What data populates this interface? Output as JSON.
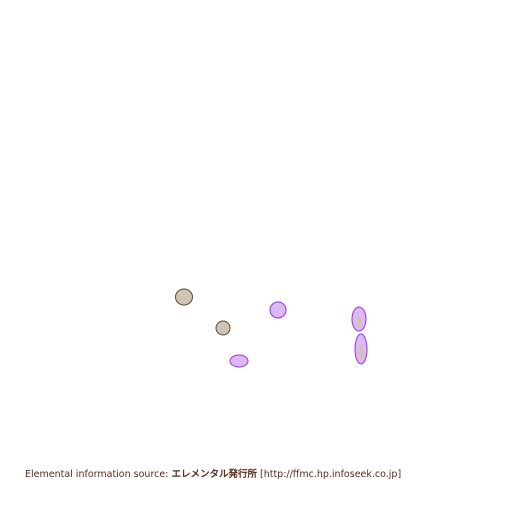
{
  "footer": {
    "label": "Elemental information source:",
    "publisher": "エレメンタル発行所",
    "url": "[http://ffmc.hp.infoseek.co.jp]"
  }
}
